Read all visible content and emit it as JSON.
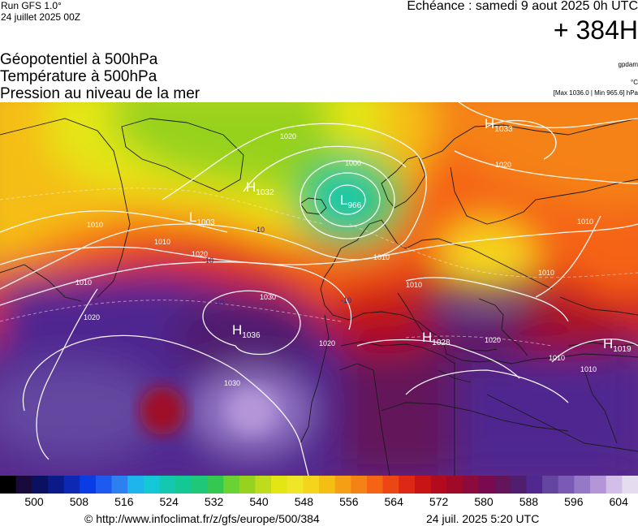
{
  "header": {
    "run": "Run GFS 1.0°",
    "run_date": "24 juillet 2025 00Z",
    "echeance": "Echéance : samedi 9 aout 2025 0h UTC",
    "horizon": "+ 384H"
  },
  "layers": [
    "Géopotentiel à 500hPa",
    "Température à 500hPa",
    "Pression au niveau de la mer"
  ],
  "units": {
    "geopotential": "gpdam",
    "temperature": "°C",
    "pressure_range": "[Max 1036.0 | Min 965.6] hPa"
  },
  "map": {
    "pressure_centers": [
      {
        "type": "H",
        "value": "1033"
      },
      {
        "type": "H",
        "value": "1032"
      },
      {
        "type": "L",
        "value": "966"
      },
      {
        "type": "L",
        "value": "1003"
      },
      {
        "type": "H",
        "value": "1036"
      },
      {
        "type": "H",
        "value": "1028"
      },
      {
        "type": "H",
        "value": "1019"
      }
    ],
    "isobar_labels": [
      "1020",
      "1010",
      "1000",
      "1010",
      "1010",
      "1020",
      "1010",
      "1030",
      "1020",
      "1030",
      "1020",
      "1010",
      "1010",
      "1010",
      "1020",
      "1010",
      "1020",
      "1010"
    ],
    "temperature_labels": [
      "-10",
      "-10",
      "-10",
      "-10"
    ]
  },
  "scale": {
    "tick_labels": [
      "500",
      "508",
      "516",
      "524",
      "532",
      "540",
      "548",
      "556",
      "564",
      "572",
      "580",
      "588",
      "596",
      "604"
    ],
    "colors": [
      "#000000",
      "#1a0a3c",
      "#0c1060",
      "#0a1a88",
      "#0c28b4",
      "#0a3ce6",
      "#1e5af0",
      "#2d80f0",
      "#1eb4ec",
      "#14c8d8",
      "#14c8b0",
      "#14c896",
      "#1ec878",
      "#34c850",
      "#6ad232",
      "#96d21e",
      "#bedc1e",
      "#e4e614",
      "#f0e628",
      "#f5d41e",
      "#f5be14",
      "#f5a014",
      "#f58214",
      "#f56414",
      "#eb4614",
      "#dc2814",
      "#c81414",
      "#b40a1e",
      "#a00a28",
      "#8c0a3c",
      "#7a0a50",
      "#64145a",
      "#501e6e",
      "#502890",
      "#6446a0",
      "#7a5ab4",
      "#9678c8",
      "#b496d8",
      "#d2bee6",
      "#e6dcf0"
    ],
    "color_description": "500hPa geopotential color scale from dark blue/black through green, yellow, orange, red to purple/lavender"
  },
  "footer": {
    "credit": "© http://www.infoclimat.fr/z/gfs/europe/500/384",
    "run_datetime": "24 juil. 2025  5:20 UTC"
  }
}
